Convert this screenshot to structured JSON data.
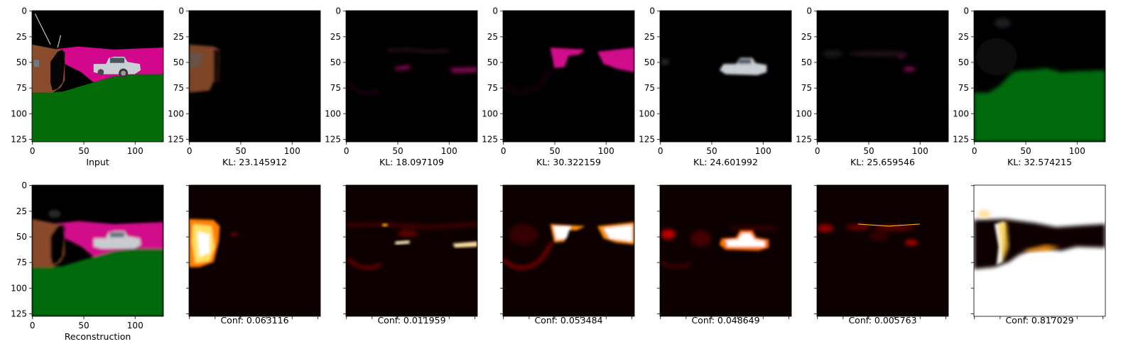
{
  "chart_data": [
    {
      "type": "heatmap",
      "row": 0,
      "col": 0,
      "image": "scene-input",
      "caption": "Input",
      "xticks": [
        0,
        50,
        100
      ],
      "yticks": [
        0,
        25,
        50,
        75,
        100,
        125
      ],
      "xlim": [
        0,
        128
      ],
      "ylim": [
        128,
        0
      ]
    },
    {
      "type": "heatmap",
      "row": 0,
      "col": 1,
      "image": "slot-1-tv",
      "caption": "KL: 23.145912",
      "xticks": [
        0,
        50,
        100
      ],
      "yticks": [
        0,
        25,
        50,
        75,
        100,
        125
      ],
      "xlim": [
        0,
        128
      ],
      "ylim": [
        128,
        0
      ]
    },
    {
      "type": "heatmap",
      "row": 0,
      "col": 2,
      "image": "slot-2-faint-magenta",
      "caption": "KL: 18.097109",
      "xticks": [
        0,
        50,
        100
      ],
      "yticks": [
        0,
        25,
        50,
        75,
        100,
        125
      ],
      "xlim": [
        0,
        128
      ],
      "ylim": [
        128,
        0
      ]
    },
    {
      "type": "heatmap",
      "row": 0,
      "col": 3,
      "image": "slot-3-magenta-wall",
      "caption": "KL: 30.322159",
      "xticks": [
        0,
        50,
        100
      ],
      "yticks": [
        0,
        25,
        50,
        75,
        100,
        125
      ],
      "xlim": [
        0,
        128
      ],
      "ylim": [
        128,
        0
      ]
    },
    {
      "type": "heatmap",
      "row": 0,
      "col": 4,
      "image": "slot-4-car",
      "caption": "KL: 24.601992",
      "xticks": [
        0,
        50,
        100
      ],
      "yticks": [
        0,
        25,
        50,
        75,
        100,
        125
      ],
      "xlim": [
        0,
        128
      ],
      "ylim": [
        128,
        0
      ]
    },
    {
      "type": "heatmap",
      "row": 0,
      "col": 5,
      "image": "slot-5-faint",
      "caption": "KL: 25.659546",
      "xticks": [
        0,
        50,
        100
      ],
      "yticks": [
        0,
        25,
        50,
        75,
        100,
        125
      ],
      "xlim": [
        0,
        128
      ],
      "ylim": [
        128,
        0
      ]
    },
    {
      "type": "heatmap",
      "row": 0,
      "col": 6,
      "image": "slot-6-ground",
      "caption": "KL: 32.574215",
      "xticks": [
        0,
        50,
        100
      ],
      "yticks": [
        0,
        25,
        50,
        75,
        100,
        125
      ],
      "xlim": [
        0,
        128
      ],
      "ylim": [
        128,
        0
      ]
    },
    {
      "type": "heatmap",
      "row": 1,
      "col": 0,
      "image": "scene-reconstruction",
      "caption": "Reconstruction",
      "xticks": [
        0,
        50,
        100
      ],
      "yticks": [
        0,
        25,
        50,
        75,
        100,
        125
      ],
      "xlim": [
        0,
        128
      ],
      "ylim": [
        128,
        0
      ]
    },
    {
      "type": "heatmap",
      "row": 1,
      "col": 1,
      "image": "mask-1-tv",
      "caption": "Conf: 0.063116",
      "colormap": "hot",
      "xticks": [],
      "yticks": []
    },
    {
      "type": "heatmap",
      "row": 1,
      "col": 2,
      "image": "mask-2-faint",
      "caption": "Conf: 0.011959",
      "colormap": "hot",
      "xticks": [],
      "yticks": []
    },
    {
      "type": "heatmap",
      "row": 1,
      "col": 3,
      "image": "mask-3-wall",
      "caption": "Conf: 0.053484",
      "colormap": "hot",
      "xticks": [],
      "yticks": []
    },
    {
      "type": "heatmap",
      "row": 1,
      "col": 4,
      "image": "mask-4-car",
      "caption": "Conf: 0.048649",
      "colormap": "hot",
      "xticks": [],
      "yticks": []
    },
    {
      "type": "heatmap",
      "row": 1,
      "col": 5,
      "image": "mask-5-faint",
      "caption": "Conf: 0.005763",
      "colormap": "hot",
      "xticks": [],
      "yticks": []
    },
    {
      "type": "heatmap",
      "row": 1,
      "col": 6,
      "image": "mask-6-ground",
      "caption": "Conf: 0.817029",
      "colormap": "hot",
      "xticks": [],
      "yticks": []
    }
  ],
  "colors": {
    "sky": "#000000",
    "ground": "#036b07",
    "wall": "#d2078c",
    "tv": "#8a4a2c",
    "car": "#c6ccd1",
    "hot_low": "#0d0000",
    "hot_high": "#ffffff"
  }
}
